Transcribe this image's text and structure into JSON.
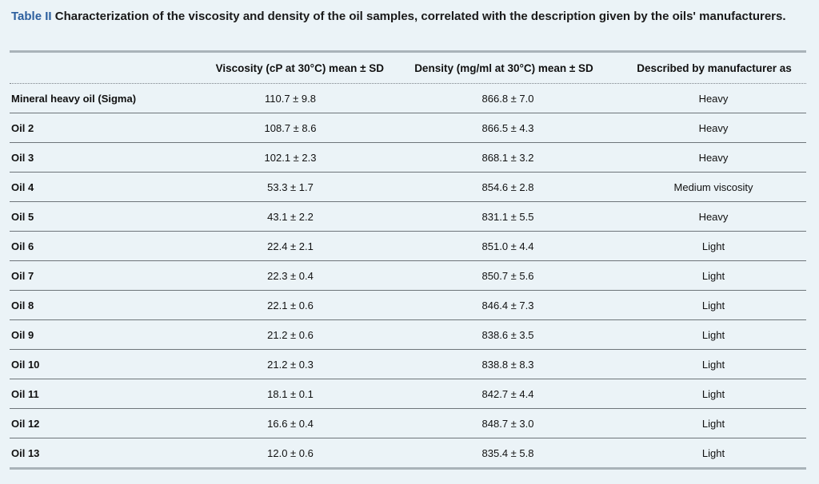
{
  "caption": {
    "label": "Table II",
    "text": "Characterization of the viscosity and density of the oil samples, correlated with the description given by the oils' manufacturers."
  },
  "headers": [
    "",
    "Viscosity (cP at 30°C) mean ± SD",
    "Density (mg/ml at 30°C) mean ± SD",
    "Described by manufacturer as"
  ],
  "rows": [
    [
      "Mineral heavy oil (Sigma)",
      "110.7 ± 9.8",
      "866.8 ± 7.0",
      "Heavy"
    ],
    [
      "Oil 2",
      "108.7 ± 8.6",
      "866.5 ± 4.3",
      "Heavy"
    ],
    [
      "Oil 3",
      "102.1 ± 2.3",
      "868.1 ± 3.2",
      "Heavy"
    ],
    [
      "Oil 4",
      "53.3 ± 1.7",
      "854.6 ± 2.8",
      "Medium viscosity"
    ],
    [
      "Oil 5",
      "43.1 ± 2.2",
      "831.1 ± 5.5",
      "Heavy"
    ],
    [
      "Oil 6",
      "22.4 ± 2.1",
      "851.0 ± 4.4",
      "Light"
    ],
    [
      "Oil 7",
      "22.3 ± 0.4",
      "850.7 ± 5.6",
      "Light"
    ],
    [
      "Oil 8",
      "22.1 ± 0.6",
      "846.4 ± 7.3",
      "Light"
    ],
    [
      "Oil 9",
      "21.2 ± 0.6",
      "838.6 ± 3.5",
      "Light"
    ],
    [
      "Oil 10",
      "21.2 ± 0.3",
      "838.8 ± 8.3",
      "Light"
    ],
    [
      "Oil 11",
      "18.1 ± 0.1",
      "842.7 ± 4.4",
      "Light"
    ],
    [
      "Oil 12",
      "16.6 ± 0.4",
      "848.7 ± 3.0",
      "Light"
    ],
    [
      "Oil 13",
      "12.0 ± 0.6",
      "835.4 ± 5.8",
      "Light"
    ]
  ]
}
